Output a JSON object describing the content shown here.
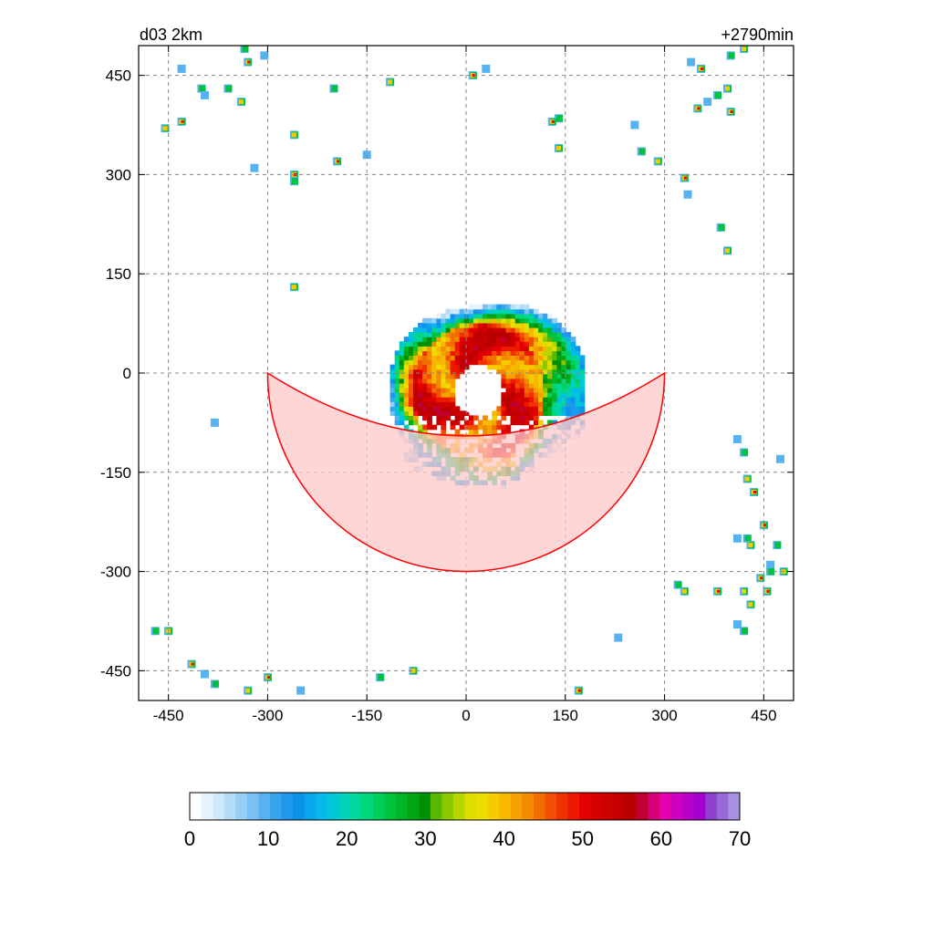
{
  "chart_data": {
    "type": "heatmap",
    "title_left": "d03 2km",
    "title_right": "+2790min",
    "xlabel": "",
    "ylabel": "",
    "xlim": [
      -495,
      495
    ],
    "ylim": [
      -495,
      495
    ],
    "x_ticks": [
      -450,
      -300,
      -150,
      0,
      150,
      300,
      450
    ],
    "y_ticks": [
      450,
      300,
      150,
      0,
      -150,
      -300,
      -450
    ],
    "grid": true,
    "colorbar": {
      "range": [
        0,
        70
      ],
      "ticks": [
        0,
        10,
        20,
        30,
        40,
        50,
        60,
        70
      ],
      "colors": [
        "#ffffff",
        "#e6f3fc",
        "#cfe8fa",
        "#b6ddf7",
        "#98cff5",
        "#78c1f3",
        "#56b2f1",
        "#38a4ee",
        "#1e98ec",
        "#0b92ea",
        "#08a6ec",
        "#05b9e8",
        "#00c8d6",
        "#00d2b8",
        "#00d79a",
        "#00d77b",
        "#00cf5c",
        "#00c23e",
        "#00b526",
        "#00a614",
        "#009008",
        "#58b700",
        "#8cc800",
        "#b9d500",
        "#dedf00",
        "#eedd00",
        "#f5cc00",
        "#f6b800",
        "#f5a200",
        "#f38a00",
        "#f26e00",
        "#f15000",
        "#f03200",
        "#ee1800",
        "#e40000",
        "#d70000",
        "#cc0000",
        "#c20000",
        "#b90000",
        "#c00030",
        "#d80078",
        "#e800b0",
        "#d000c0",
        "#b800c8",
        "#a200cc",
        "#9040d0",
        "#9868d8",
        "#a890e0"
      ]
    },
    "series": [
      {
        "feature": "hurricane-core",
        "center": [
          15,
          -30
        ],
        "eye_radius": 45,
        "outer_radius": 130
      },
      {
        "feature": "sector-overlay",
        "center": [
          0,
          0
        ],
        "radius": 300,
        "angle_start": 180,
        "angle_end": 360,
        "fill": "#ffc8c8",
        "stroke": "#ff0000"
      }
    ],
    "cells": [
      [
        -430,
        460
      ],
      [
        -400,
        430
      ],
      [
        -455,
        370
      ],
      [
        -430,
        380
      ],
      [
        -395,
        420
      ],
      [
        -360,
        430
      ],
      [
        -340,
        410
      ],
      [
        -330,
        470
      ],
      [
        -305,
        480
      ],
      [
        -335,
        490
      ],
      [
        -260,
        360
      ],
      [
        -260,
        300
      ],
      [
        -320,
        310
      ],
      [
        -260,
        290
      ],
      [
        -260,
        130
      ],
      [
        -195,
        320
      ],
      [
        -150,
        330
      ],
      [
        -200,
        430
      ],
      [
        -115,
        440
      ],
      [
        10,
        450
      ],
      [
        30,
        460
      ],
      [
        140,
        385
      ],
      [
        140,
        340
      ],
      [
        130,
        380
      ],
      [
        255,
        375
      ],
      [
        265,
        335
      ],
      [
        290,
        320
      ],
      [
        330,
        295
      ],
      [
        335,
        270
      ],
      [
        385,
        220
      ],
      [
        395,
        185
      ],
      [
        350,
        400
      ],
      [
        365,
        410
      ],
      [
        380,
        420
      ],
      [
        395,
        430
      ],
      [
        400,
        395
      ],
      [
        340,
        470
      ],
      [
        400,
        480
      ],
      [
        420,
        490
      ],
      [
        355,
        460
      ],
      [
        -380,
        -75
      ],
      [
        -470,
        -390
      ],
      [
        -450,
        -390
      ],
      [
        -415,
        -440
      ],
      [
        -395,
        -455
      ],
      [
        -380,
        -470
      ],
      [
        -330,
        -480
      ],
      [
        -300,
        -460
      ],
      [
        -250,
        -480
      ],
      [
        -130,
        -460
      ],
      [
        -80,
        -450
      ],
      [
        170,
        -480
      ],
      [
        230,
        -400
      ],
      [
        320,
        -320
      ],
      [
        330,
        -330
      ],
      [
        380,
        -330
      ],
      [
        410,
        -380
      ],
      [
        420,
        -390
      ],
      [
        430,
        -350
      ],
      [
        445,
        -310
      ],
      [
        460,
        -290
      ],
      [
        470,
        -260
      ],
      [
        480,
        -300
      ],
      [
        455,
        -330
      ],
      [
        410,
        -250
      ],
      [
        425,
        -250
      ],
      [
        430,
        -260
      ],
      [
        450,
        -230
      ],
      [
        410,
        -100
      ],
      [
        420,
        -120
      ],
      [
        425,
        -160
      ],
      [
        435,
        -180
      ],
      [
        475,
        -130
      ],
      [
        460,
        -300
      ],
      [
        420,
        -330
      ]
    ]
  }
}
